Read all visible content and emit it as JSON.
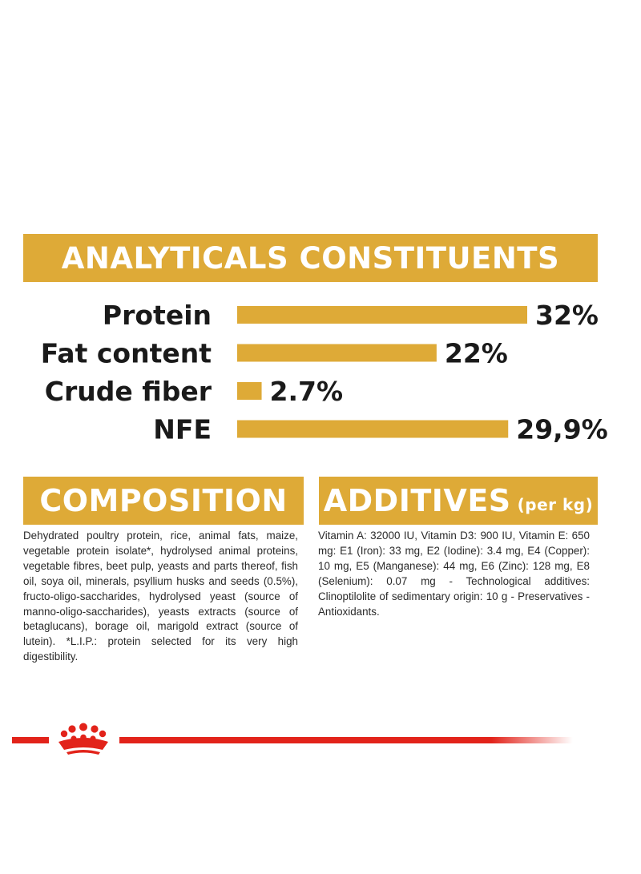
{
  "analytics": {
    "title": "ANALYTICALS CONSTITUENTS"
  },
  "composition": {
    "title": "COMPOSITION",
    "text": "Dehydrated poultry protein, rice, animal fats, maize, vegetable protein isolate*, hydrolysed animal proteins, vegetable fibres, beet pulp, yeasts and parts thereof, fish oil, soya oil, minerals, psyllium husks and seeds (0.5%), fructo-oligo-saccharides, hydrolysed yeast (source of manno-oligo-saccharides), yeasts extracts (source of betaglucans), borage oil, marigold extract (source of lutein). *L.I.P.: protein selected for its very high digestibility."
  },
  "additives": {
    "title": "ADDITIVES",
    "unit": "(per kg)",
    "text": "Vitamin A: 32000 IU, Vitamin D3: 900 IU, Vitamin E: 650 mg: E1 (Iron): 33 mg, E2 (Iodine): 3.4 mg, E4 (Copper): 10 mg, E5 (Manganese): 44 mg, E6 (Zinc): 128 mg, E8 (Selenium): 0.07 mg - Technological additives: Clinoptilolite of sedimentary origin: 10 g - Preservatives - Antioxidants."
  },
  "colors": {
    "accent": "#deaa37",
    "brand_red": "#e2231a",
    "text": "#1a1a1a"
  },
  "chart_data": {
    "type": "bar",
    "orientation": "horizontal",
    "title": "ANALYTICALS CONSTITUENTS",
    "categories": [
      "Protein",
      "Fat content",
      "Crude fiber",
      "NFE"
    ],
    "values": [
      32,
      22,
      2.7,
      29.9
    ],
    "value_labels": [
      "32%",
      "22%",
      "2.7%",
      "29,9%"
    ],
    "xlim": [
      0,
      32
    ],
    "grid": false,
    "legend": "none"
  },
  "footer": {
    "logo_icon": "royal-canin-crown-icon"
  }
}
